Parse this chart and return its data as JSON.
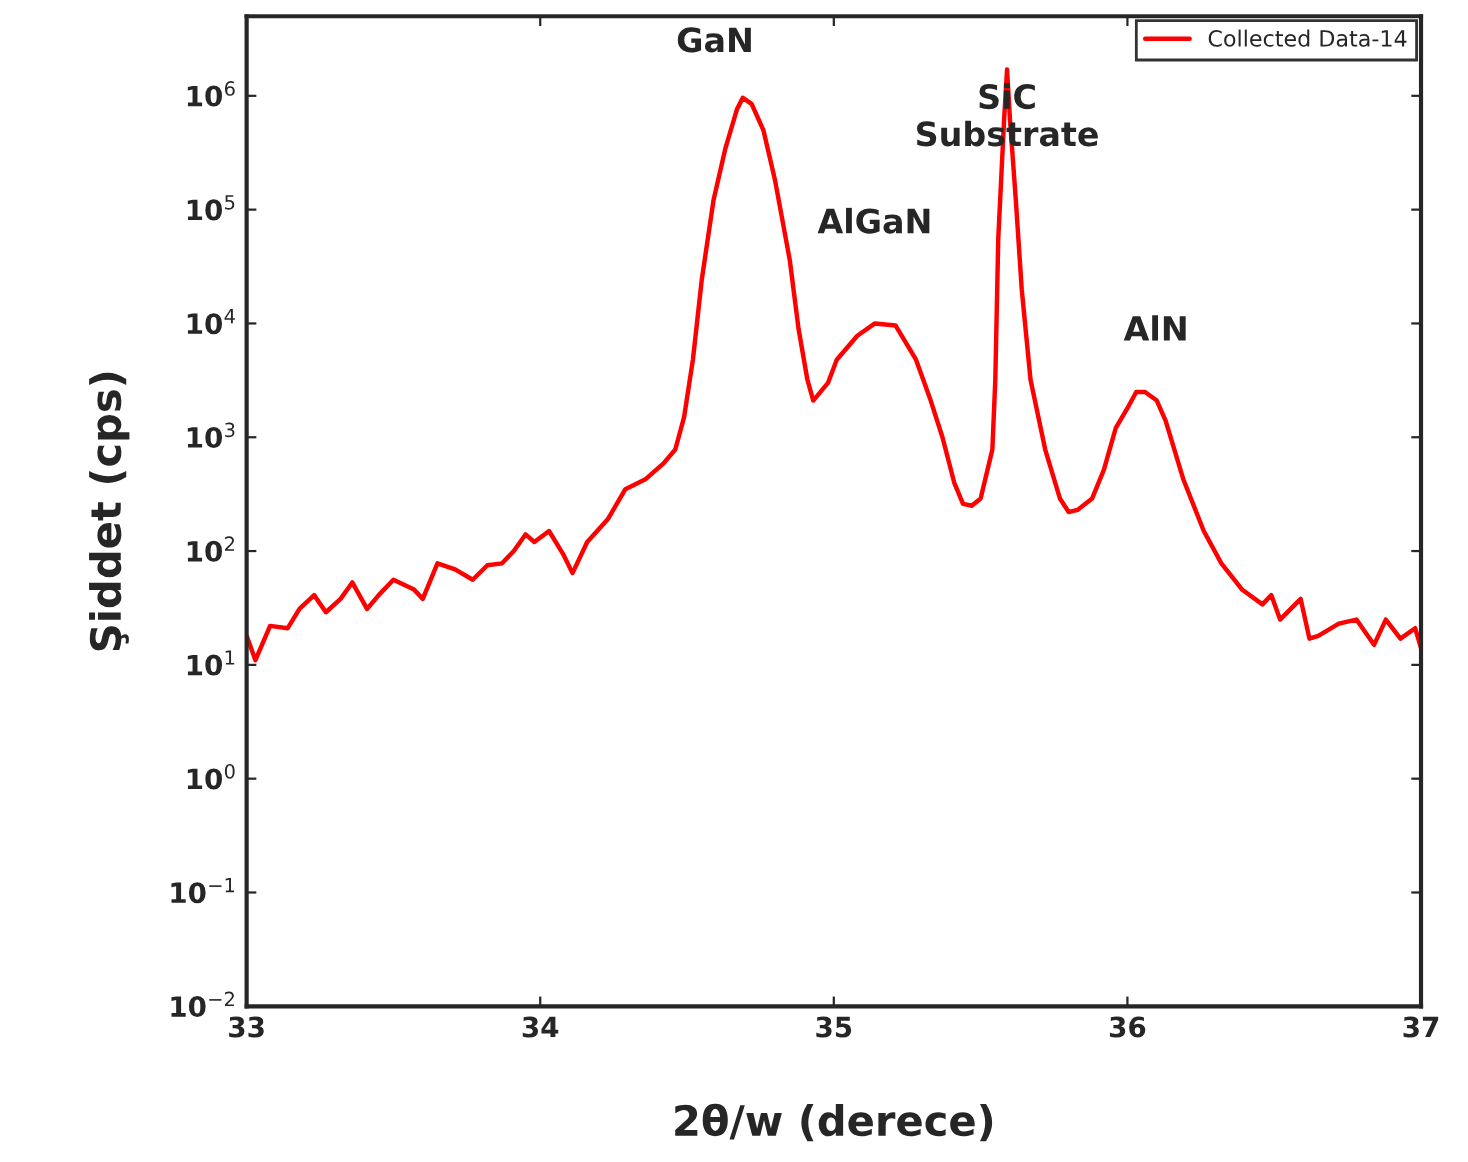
{
  "chart_data": {
    "type": "line",
    "xlabel": "2θ/w (derece)",
    "ylabel": "Şiddet (cps)",
    "log": "y",
    "xlim": [
      33,
      37
    ],
    "xticks": [
      33,
      34,
      35,
      36,
      37
    ],
    "ylim": [
      0.01,
      5000000
    ],
    "yticks": [
      {
        "value": 0.01,
        "label": "10$^{−2}$"
      },
      {
        "value": 0.1,
        "label": "10$^{−1}$"
      },
      {
        "value": 1,
        "label": "10$^{0}$"
      },
      {
        "value": 10,
        "label": "10$^{1}$"
      },
      {
        "value": 100,
        "label": "10$^{2}$"
      },
      {
        "value": 1000,
        "label": "10$^{3}$"
      },
      {
        "value": 10000,
        "label": "10$^{4}$"
      },
      {
        "value": 100000,
        "label": "10$^{5}$"
      },
      {
        "value": 1000000,
        "label": "10$^{6}$"
      }
    ],
    "grid": false,
    "legend": "top right",
    "marker": "none",
    "line_style": "solid",
    "series": [
      {
        "name": "Collected Data-14",
        "color": "#ff0000",
        "x": [
          33.0,
          33.03,
          33.08,
          33.14,
          33.18,
          33.23,
          33.27,
          33.32,
          33.36,
          33.41,
          33.45,
          33.5,
          33.57,
          33.6,
          33.65,
          33.71,
          33.77,
          33.82,
          33.87,
          33.91,
          33.95,
          33.98,
          34.03,
          34.08,
          34.11,
          34.16,
          34.23,
          34.29,
          34.36,
          34.42,
          34.46,
          34.49,
          34.52,
          34.55,
          34.59,
          34.63,
          34.67,
          34.69,
          34.72,
          34.76,
          34.8,
          34.85,
          34.88,
          34.91,
          34.93,
          34.98,
          35.01,
          35.08,
          35.14,
          35.21,
          35.28,
          35.33,
          35.37,
          35.41,
          35.44,
          35.47,
          35.5,
          35.54,
          35.55,
          35.56,
          35.58,
          35.59,
          35.6,
          35.62,
          35.64,
          35.67,
          35.72,
          35.77,
          35.8,
          35.83,
          35.88,
          35.92,
          35.96,
          36.0,
          36.03,
          36.06,
          36.1,
          36.13,
          36.19,
          36.26,
          36.32,
          36.39,
          36.46,
          36.49,
          36.52,
          36.59,
          36.62,
          36.65,
          36.72,
          36.78,
          36.84,
          36.88,
          36.93,
          36.98,
          37.0
        ],
        "values": [
          18,
          11,
          22,
          21,
          31,
          41,
          29,
          38,
          53,
          31,
          41,
          56,
          46,
          38,
          78,
          69,
          56,
          75,
          78,
          100,
          140,
          120,
          150,
          92,
          64,
          120,
          190,
          350,
          430,
          590,
          780,
          1500,
          4800,
          24000,
          120000,
          340000,
          760000,
          960000,
          850000,
          500000,
          180000,
          36000,
          8900,
          3200,
          2100,
          3000,
          4800,
          7800,
          10000,
          9600,
          4800,
          2100,
          1000,
          400,
          260,
          250,
          290,
          780,
          3200,
          55000,
          620000,
          1700000,
          620000,
          120000,
          20000,
          3200,
          780,
          290,
          220,
          230,
          290,
          520,
          1200,
          1800,
          2500,
          2500,
          2100,
          1400,
          430,
          150,
          78,
          46,
          34,
          41,
          25,
          38,
          17,
          18,
          23,
          25,
          15,
          25,
          17,
          21,
          14
        ]
      }
    ],
    "annotations": [
      {
        "text": "GaN",
        "x": 34.69,
        "y": 960000
      },
      {
        "text": "AlGaN",
        "x": 35.14,
        "y": 10000
      },
      {
        "text": "SiC\nSubstrate",
        "x": 35.59,
        "y": 1700000
      },
      {
        "text": "AlN",
        "x": 36.06,
        "y": 2500
      }
    ]
  }
}
